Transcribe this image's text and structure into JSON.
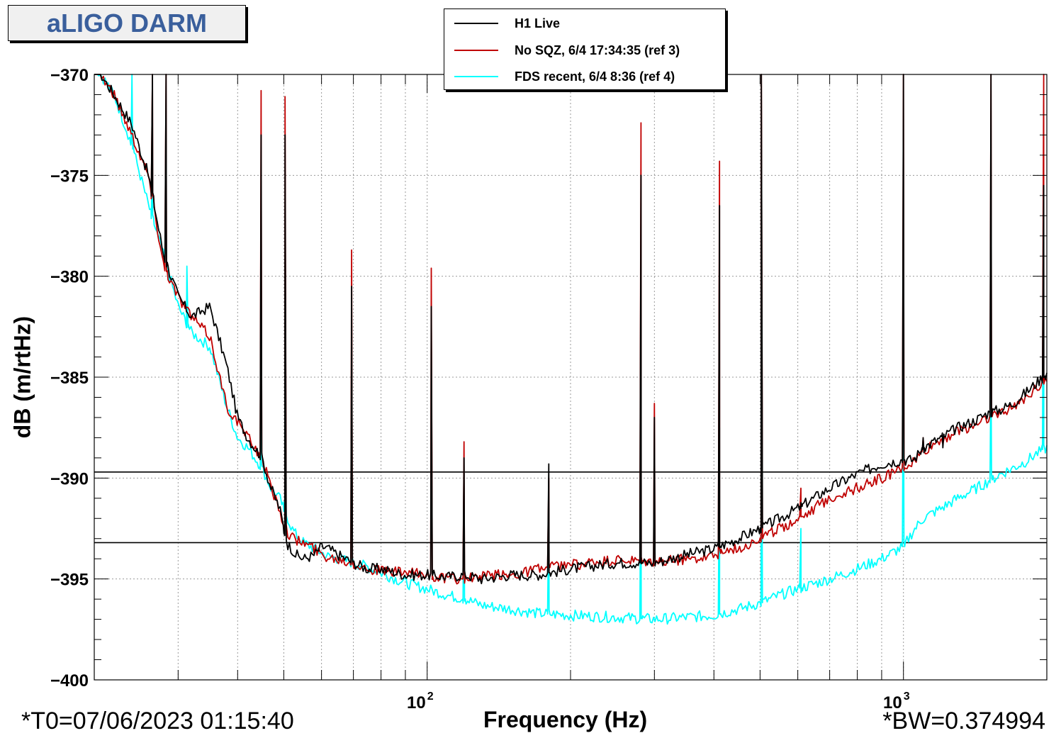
{
  "title": "aLIGO DARM",
  "footer": {
    "t0": "*T0=07/06/2023 01:15:40",
    "bw": "*BW=0.374994"
  },
  "chart_data": {
    "type": "line",
    "title": "aLIGO DARM",
    "xlabel": "Frequency (Hz)",
    "ylabel": "dB (m/rtHz)",
    "xscale": "log",
    "xlim": [
      20,
      2000
    ],
    "ylim": [
      -400,
      -370
    ],
    "yticks": [
      -370,
      -375,
      -380,
      -385,
      -390,
      -395,
      -400
    ],
    "ytick_labels": [
      "−370",
      "−375",
      "−380",
      "−385",
      "−390",
      "−395",
      "−400"
    ],
    "xtick_major": [
      {
        "value": 100,
        "base": "10",
        "exp": "2"
      },
      {
        "value": 1000,
        "base": "10",
        "exp": "3"
      }
    ],
    "xtick_minor": [
      30,
      40,
      50,
      60,
      70,
      80,
      90,
      200,
      300,
      400,
      500,
      600,
      700,
      800,
      900
    ],
    "grid": true,
    "legend_position": "top-center",
    "hlines": [
      -389.7,
      -393.2
    ],
    "series": [
      {
        "name": "H1 Live",
        "color": "#000000",
        "x": [
          20,
          22,
          24,
          26,
          28,
          30,
          32,
          35,
          38,
          40,
          42,
          45,
          47,
          49,
          50,
          51,
          52,
          53,
          55,
          58,
          60,
          62,
          65,
          70,
          75,
          80,
          90,
          100,
          110,
          120,
          130,
          140,
          150,
          170,
          200,
          250,
          300,
          350,
          400,
          450,
          500,
          550,
          600,
          700,
          800,
          900,
          1000,
          1050,
          1100,
          1200,
          1300,
          1400,
          1500,
          1600,
          1700,
          1800,
          1900,
          2000
        ],
        "y": [
          -369.5,
          -371,
          -372.5,
          -375,
          -379,
          -381,
          -382,
          -381.5,
          -384.5,
          -387,
          -388,
          -389,
          -390.5,
          -391.5,
          -392.5,
          -393.3,
          -393.5,
          -393.8,
          -394,
          -393.8,
          -393.4,
          -393.5,
          -393.8,
          -394.2,
          -394.5,
          -394.5,
          -394.8,
          -394.8,
          -394.9,
          -394.8,
          -395,
          -394.9,
          -394.8,
          -394.8,
          -394.5,
          -394.2,
          -394.2,
          -393.8,
          -393.5,
          -393,
          -392.5,
          -392,
          -391.5,
          -390.5,
          -389.8,
          -389.3,
          -389.1,
          -389.1,
          -388.5,
          -388,
          -387.5,
          -387.2,
          -386.8,
          -386.6,
          -386.3,
          -385.8,
          -385.3,
          -384.8
        ],
        "peaks": [
          {
            "f": 26.5,
            "db": -370
          },
          {
            "f": 28.3,
            "db": -370
          },
          {
            "f": 44.8,
            "db": -373
          },
          {
            "f": 50.3,
            "db": -373
          },
          {
            "f": 69.4,
            "db": -380.5
          },
          {
            "f": 102,
            "db": -381.5
          },
          {
            "f": 119.5,
            "db": -389
          },
          {
            "f": 180,
            "db": -389.3
          },
          {
            "f": 281.2,
            "db": -375
          },
          {
            "f": 300,
            "db": -387
          },
          {
            "f": 411,
            "db": -376.5
          },
          {
            "f": 503,
            "db": -370
          },
          {
            "f": 609,
            "db": -391.5
          },
          {
            "f": 1000,
            "db": -370
          },
          {
            "f": 1100,
            "db": -388
          },
          {
            "f": 1210,
            "db": -388.5
          },
          {
            "f": 1527,
            "db": -370
          },
          {
            "f": 1970,
            "db": -375.5
          }
        ]
      },
      {
        "name": "No SQZ, 6/4 17:34:35 (ref 3)",
        "color": "#c00000",
        "x": [
          20,
          22,
          24,
          26,
          28,
          30,
          32,
          35,
          38,
          40,
          42,
          45,
          47,
          49,
          50,
          51,
          52,
          53,
          55,
          58,
          60,
          62,
          65,
          70,
          75,
          80,
          90,
          100,
          110,
          120,
          130,
          140,
          150,
          170,
          200,
          250,
          300,
          350,
          400,
          450,
          500,
          550,
          600,
          700,
          800,
          900,
          1000,
          1050,
          1100,
          1200,
          1300,
          1400,
          1500,
          1600,
          1700,
          1800,
          1900,
          2000
        ],
        "y": [
          -369.5,
          -371,
          -373,
          -375,
          -379.5,
          -381,
          -382,
          -383,
          -386.5,
          -387.2,
          -388,
          -389,
          -390.5,
          -391.5,
          -392.3,
          -392.7,
          -392.9,
          -393.1,
          -393.2,
          -393.5,
          -393.8,
          -393.9,
          -394,
          -394.2,
          -394.5,
          -394.6,
          -394.7,
          -394.8,
          -395,
          -395,
          -394.9,
          -394.8,
          -394.8,
          -394.5,
          -394.3,
          -394.1,
          -394.2,
          -394,
          -393.8,
          -393.5,
          -393,
          -392.5,
          -392,
          -391,
          -390.5,
          -390,
          -389.5,
          -389.2,
          -388.7,
          -388.1,
          -387.7,
          -387.4,
          -387,
          -386.8,
          -386.5,
          -386,
          -385.5,
          -385
        ],
        "peaks": [
          {
            "f": 26.5,
            "db": -370
          },
          {
            "f": 28.3,
            "db": -370
          },
          {
            "f": 44.8,
            "db": -370.8
          },
          {
            "f": 50.3,
            "db": -371.1
          },
          {
            "f": 69.4,
            "db": -378.7
          },
          {
            "f": 102,
            "db": -379.6
          },
          {
            "f": 119.5,
            "db": -388.2
          },
          {
            "f": 180,
            "db": -390
          },
          {
            "f": 281.2,
            "db": -372.4
          },
          {
            "f": 300,
            "db": -386.3
          },
          {
            "f": 411,
            "db": -374.3
          },
          {
            "f": 503,
            "db": -370
          },
          {
            "f": 609,
            "db": -390.5
          },
          {
            "f": 1000,
            "db": -370
          },
          {
            "f": 1100,
            "db": -388
          },
          {
            "f": 1210,
            "db": -388.3
          },
          {
            "f": 1527,
            "db": -370
          },
          {
            "f": 1970,
            "db": -370
          }
        ]
      },
      {
        "name": "FDS recent, 6/4 8:36 (ref 4)",
        "color": "#00ffff",
        "x": [
          20,
          22,
          24,
          26,
          28,
          30,
          32,
          35,
          38,
          40,
          42,
          45,
          47,
          49,
          50,
          51,
          52,
          53,
          55,
          58,
          60,
          62,
          65,
          70,
          75,
          80,
          90,
          100,
          110,
          120,
          130,
          140,
          150,
          170,
          200,
          250,
          300,
          350,
          400,
          450,
          500,
          550,
          600,
          700,
          800,
          900,
          1000,
          1050,
          1100,
          1200,
          1300,
          1400,
          1500,
          1600,
          1700,
          1800,
          1900,
          2000
        ],
        "y": [
          -369.5,
          -371,
          -373.5,
          -376.5,
          -379,
          -381.5,
          -382.8,
          -383.5,
          -386.5,
          -388,
          -388.5,
          -389.5,
          -390.5,
          -391,
          -391.5,
          -392,
          -392.5,
          -392.8,
          -393.2,
          -393.5,
          -393.7,
          -393.9,
          -394,
          -394.2,
          -394.4,
          -394.7,
          -395.2,
          -395.5,
          -395.8,
          -396,
          -396.3,
          -396.4,
          -396.5,
          -396.7,
          -396.8,
          -396.9,
          -397,
          -396.9,
          -396.8,
          -396.5,
          -396.2,
          -395.8,
          -395.5,
          -395,
          -394.5,
          -394,
          -393.4,
          -392.6,
          -392,
          -391.5,
          -391,
          -390.6,
          -390.2,
          -389.8,
          -389.5,
          -389.2,
          -388.8,
          -388.5
        ],
        "peaks": [
          {
            "f": 24,
            "db": -369.9
          },
          {
            "f": 26.5,
            "db": -373.5
          },
          {
            "f": 28.3,
            "db": -376
          },
          {
            "f": 31.3,
            "db": -379.5
          },
          {
            "f": 44.8,
            "db": -386.5
          },
          {
            "f": 50.3,
            "db": -390
          },
          {
            "f": 119.5,
            "db": -389
          },
          {
            "f": 180,
            "db": -391.5
          },
          {
            "f": 281.2,
            "db": -388
          },
          {
            "f": 411,
            "db": -387.5
          },
          {
            "f": 503,
            "db": -384
          },
          {
            "f": 609,
            "db": -392.5
          },
          {
            "f": 1000,
            "db": -383
          },
          {
            "f": 1527,
            "db": -384.5
          },
          {
            "f": 1970,
            "db": -373.5
          }
        ]
      }
    ]
  }
}
